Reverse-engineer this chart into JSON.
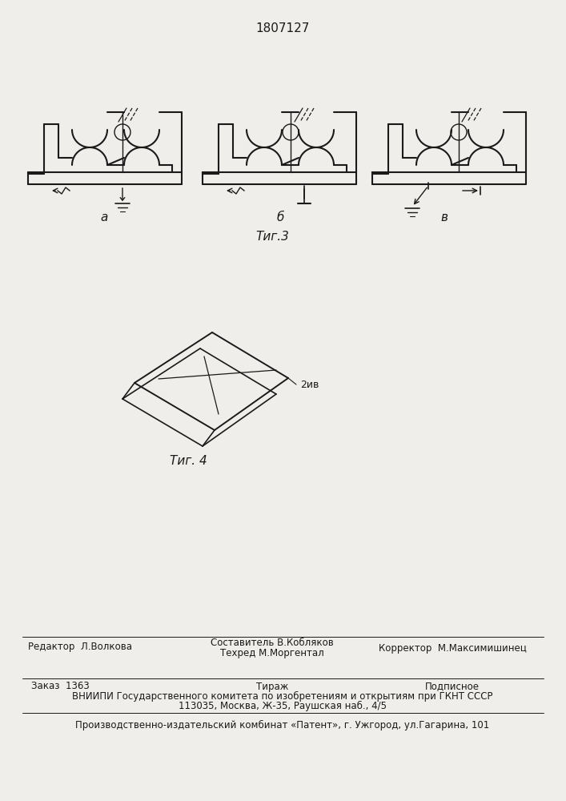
{
  "title": "1807127",
  "fig3_label": "Τиг.3",
  "fig4_label": "Τиг. 4",
  "fig3_sub_a": "a",
  "fig3_sub_b": "б",
  "fig3_sub_v": "в",
  "label_2iv": "2ив",
  "footer_line1_left": "Редактор  Л.Волкова",
  "footer_line1_center_top": "Составитель В.Кобляков",
  "footer_line1_center_bot": "Техред М.Моргентал",
  "footer_line1_right": "Корректор  М.Максимишинец",
  "footer_line2_col1": "Заказ  1363",
  "footer_line2_col2": "Тираж",
  "footer_line2_col3": "Подписное",
  "footer_line3": "ВНИИПИ Государственного комитета по изобретениям и открытиям при ГКНТ СССР",
  "footer_line4": "113035, Москва, Ж-35, Раушская наб., 4/5",
  "footer_line5": "Производственно-издательский комбинат «Патент», г. Ужгород, ул.Гагарина, 101",
  "bg_color": "#f0eeea",
  "line_color": "#1a1a1a",
  "text_color": "#1a1a1a"
}
